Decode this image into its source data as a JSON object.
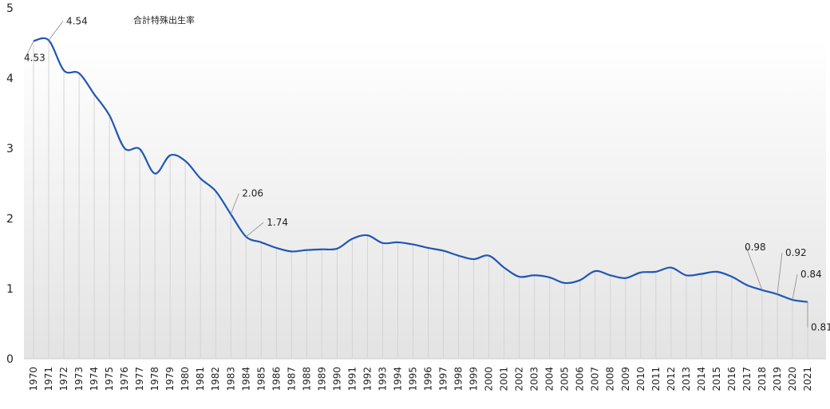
{
  "chart_data": {
    "type": "line",
    "series": [
      {
        "name": "合計特殊出生率",
        "color": "#1f57b4",
        "x": [
          "1970",
          "1971",
          "1972",
          "1973",
          "1974",
          "1975",
          "1976",
          "1977",
          "1978",
          "1979",
          "1980",
          "1981",
          "1982",
          "1983",
          "1984",
          "1985",
          "1986",
          "1987",
          "1988",
          "1989",
          "1990",
          "1991",
          "1992",
          "1993",
          "1994",
          "1995",
          "1996",
          "1997",
          "1998",
          "1999",
          "2000",
          "2001",
          "2002",
          "2003",
          "2004",
          "2005",
          "2006",
          "2007",
          "2008",
          "2009",
          "2010",
          "2011",
          "2012",
          "2013",
          "2014",
          "2015",
          "2016",
          "2017",
          "2018",
          "2019",
          "2020",
          "2021"
        ],
        "values": [
          4.53,
          4.54,
          4.11,
          4.07,
          3.77,
          3.47,
          3.0,
          2.99,
          2.64,
          2.9,
          2.82,
          2.57,
          2.39,
          2.06,
          1.74,
          1.66,
          1.58,
          1.53,
          1.55,
          1.56,
          1.57,
          1.71,
          1.76,
          1.65,
          1.66,
          1.63,
          1.58,
          1.54,
          1.47,
          1.42,
          1.47,
          1.3,
          1.17,
          1.19,
          1.16,
          1.08,
          1.12,
          1.25,
          1.19,
          1.15,
          1.23,
          1.24,
          1.3,
          1.19,
          1.21,
          1.24,
          1.17,
          1.05,
          0.98,
          0.92,
          0.84,
          0.81
        ]
      }
    ],
    "data_labels": [
      {
        "x": "1970",
        "value": "4.53"
      },
      {
        "x": "1971",
        "value": "4.54"
      },
      {
        "x": "1983",
        "value": "2.06"
      },
      {
        "x": "1984",
        "value": "1.74"
      },
      {
        "x": "2018",
        "value": "0.98"
      },
      {
        "x": "2019",
        "value": "0.92"
      },
      {
        "x": "2020",
        "value": "0.84"
      },
      {
        "x": "2021",
        "value": "0.81"
      }
    ],
    "title": "",
    "xlabel": "",
    "ylabel": "",
    "ylim": [
      0,
      5
    ],
    "yticks": [
      "0",
      "1",
      "2",
      "3",
      "4",
      "5"
    ],
    "legend": {
      "text": "合計特殊出生率",
      "placement": "top-left"
    },
    "grid": "vertical drop lines at each year",
    "background": "light gradient fading to grey at bottom"
  }
}
